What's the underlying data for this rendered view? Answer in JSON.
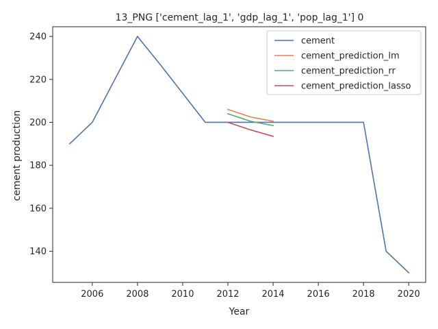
{
  "chart_data": {
    "type": "line",
    "title": "13_PNG ['cement_lag_1', 'gdp_lag_1', 'pop_lag_1'] 0",
    "xlabel": "Year",
    "ylabel": "cement production",
    "xlim": [
      2004.25,
      2020.75
    ],
    "ylim": [
      125.5,
      244.5
    ],
    "xticks": [
      2006,
      2008,
      2010,
      2012,
      2014,
      2016,
      2018,
      2020
    ],
    "yticks": [
      140,
      160,
      180,
      200,
      220,
      240
    ],
    "grid": false,
    "legend_position": "top-right",
    "series": [
      {
        "name": "cement",
        "color": "#4c72b0",
        "x": [
          2005,
          2006,
          2007,
          2008,
          2009,
          2010,
          2011,
          2012,
          2013,
          2014,
          2015,
          2016,
          2017,
          2018,
          2019,
          2020
        ],
        "y": [
          190,
          200,
          220,
          240,
          227,
          213.5,
          200,
          200,
          200,
          200,
          200,
          200,
          200,
          200,
          140,
          130
        ]
      },
      {
        "name": "cement_prediction_lm",
        "color": "#dd8452",
        "x": [
          2012,
          2013,
          2014
        ],
        "y": [
          206,
          202.5,
          200.5
        ]
      },
      {
        "name": "cement_prediction_rr",
        "color": "#55a868",
        "x": [
          2012,
          2013,
          2014
        ],
        "y": [
          204,
          200.5,
          198.5
        ]
      },
      {
        "name": "cement_prediction_lasso",
        "color": "#c44e52",
        "x": [
          2012,
          2013,
          2014
        ],
        "y": [
          200,
          196.5,
          193.5
        ]
      }
    ]
  }
}
